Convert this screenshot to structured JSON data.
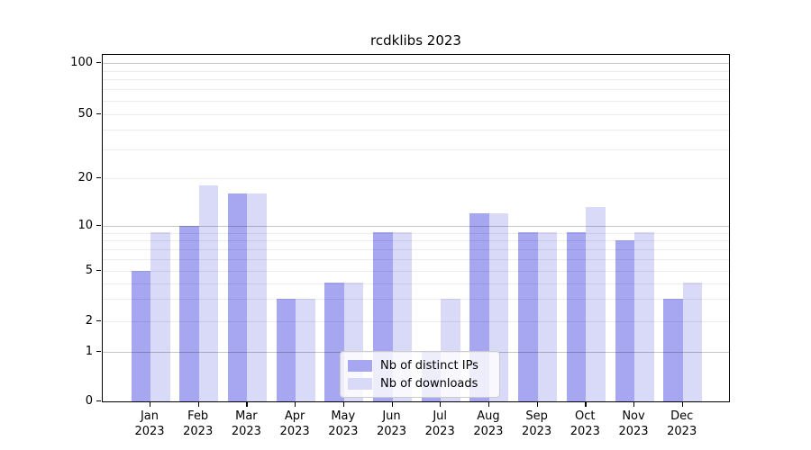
{
  "chart": {
    "title": "rcdklibs 2023",
    "y_tick_values": [
      0,
      1,
      2,
      5,
      10,
      20,
      50,
      100
    ],
    "x_tick_year": "2023"
  },
  "legend": {
    "items": [
      {
        "label": "Nb of distinct IPs",
        "color": "#a6a6f1"
      },
      {
        "label": "Nb of downloads",
        "color": "#d9d9f8"
      }
    ]
  },
  "chart_data": {
    "type": "bar",
    "title": "rcdklibs 2023",
    "categories": [
      "Jan 2023",
      "Feb 2023",
      "Mar 2023",
      "Apr 2023",
      "May 2023",
      "Jun 2023",
      "Jul 2023",
      "Aug 2023",
      "Sep 2023",
      "Oct 2023",
      "Nov 2023",
      "Dec 2023"
    ],
    "x_labels_line1": [
      "Jan",
      "Feb",
      "Mar",
      "Apr",
      "May",
      "Jun",
      "Jul",
      "Aug",
      "Sep",
      "Oct",
      "Nov",
      "Dec"
    ],
    "x_labels_line2": [
      "2023",
      "2023",
      "2023",
      "2023",
      "2023",
      "2023",
      "2023",
      "2023",
      "2023",
      "2023",
      "2023",
      "2023"
    ],
    "series": [
      {
        "name": "Nb of distinct IPs",
        "color": "#a6a6f1",
        "values": [
          5,
          10,
          16,
          3,
          4,
          9,
          1,
          12,
          9,
          9,
          8,
          3
        ]
      },
      {
        "name": "Nb of downloads",
        "color": "#d9d9f8",
        "values": [
          9,
          18,
          16,
          3,
          4,
          9,
          3,
          12,
          9,
          13,
          9,
          4
        ]
      }
    ],
    "ylabel": "",
    "xlabel": "",
    "yscale": "log-like",
    "yticks": [
      0,
      1,
      2,
      5,
      10,
      20,
      50,
      100
    ],
    "ylim": [
      0,
      115
    ],
    "grid": true,
    "grid_minor_values": [
      2,
      3,
      4,
      5,
      6,
      7,
      8,
      9,
      20,
      30,
      40,
      50,
      60,
      70,
      80,
      90
    ],
    "grid_major_values": [
      1,
      10,
      100
    ],
    "legend_position": "lower center"
  }
}
